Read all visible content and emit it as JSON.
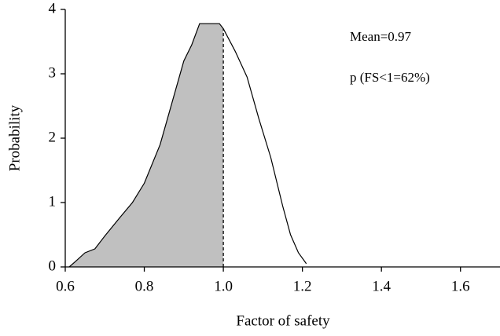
{
  "chart_data": {
    "type": "area-line",
    "x_label": "Factor of safety",
    "y_label": "Probability",
    "annotations": [
      "Mean=0.97",
      "p (FS<1=62%)"
    ],
    "x": [
      0.61,
      0.625,
      0.65,
      0.675,
      0.7,
      0.74,
      0.77,
      0.8,
      0.84,
      0.87,
      0.9,
      0.92,
      0.94,
      0.97,
      0.99,
      1.0,
      1.03,
      1.06,
      1.09,
      1.12,
      1.15,
      1.17,
      1.19,
      1.21
    ],
    "values": [
      0,
      0.08,
      0.22,
      0.28,
      0.48,
      0.78,
      1.0,
      1.3,
      1.9,
      2.55,
      3.2,
      3.45,
      3.78,
      3.78,
      3.78,
      3.7,
      3.35,
      2.95,
      2.3,
      1.7,
      0.95,
      0.5,
      0.22,
      0.05
    ],
    "reference_line": 1.0,
    "fill_color": "#c0c0c0",
    "color": "#000000",
    "xlim": [
      0.6,
      1.7
    ],
    "xticks": [
      0.6,
      0.8,
      {
        "value": 1,
        "label": "1.0"
      },
      1.2,
      1.4,
      1.6
    ],
    "ylim": [
      0,
      4
    ],
    "yticks": [
      0,
      1,
      2,
      3,
      4
    ],
    "grid": false
  }
}
